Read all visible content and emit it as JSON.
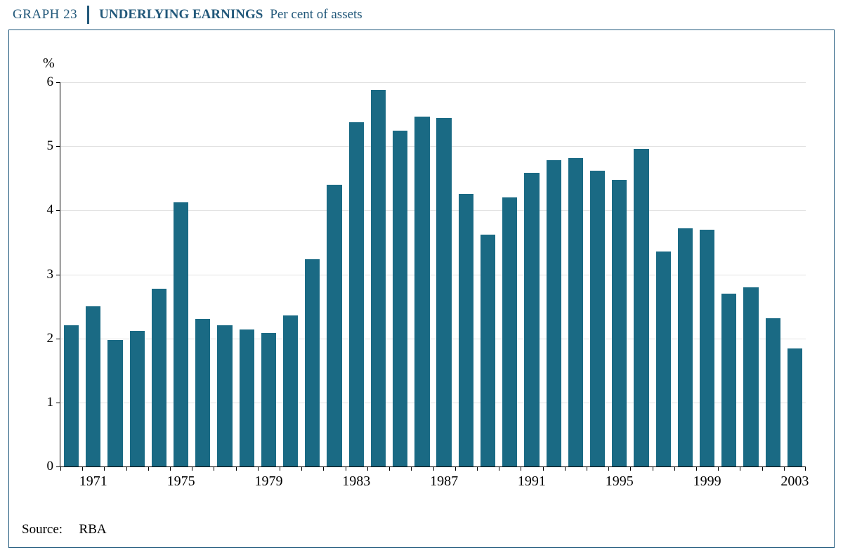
{
  "header": {
    "graph_number": "GRAPH 23",
    "title_main": "UNDERLYING EARNINGS",
    "title_sub": "Per cent of assets"
  },
  "chart": {
    "type": "bar",
    "y_unit": "%",
    "ylim": [
      0,
      6
    ],
    "yticks": [
      0,
      1,
      2,
      3,
      4,
      5,
      6
    ],
    "years": [
      1970,
      1971,
      1972,
      1973,
      1974,
      1975,
      1976,
      1977,
      1978,
      1979,
      1980,
      1981,
      1982,
      1983,
      1984,
      1985,
      1986,
      1987,
      1988,
      1989,
      1990,
      1991,
      1992,
      1993,
      1994,
      1995,
      1996,
      1997,
      1998,
      1999,
      2000,
      2001,
      2002,
      2003
    ],
    "values": [
      2.2,
      2.5,
      1.98,
      2.12,
      2.78,
      4.12,
      2.3,
      2.2,
      2.14,
      2.08,
      2.36,
      3.24,
      4.4,
      5.38,
      5.88,
      5.24,
      5.46,
      5.44,
      4.26,
      3.62,
      4.2,
      4.58,
      4.78,
      4.82,
      4.62,
      4.48,
      4.96,
      3.36,
      3.72,
      3.7,
      2.7,
      2.8,
      2.32,
      1.84
    ],
    "x_tick_labels": [
      1971,
      1975,
      1979,
      1983,
      1987,
      1991,
      1995,
      1999,
      2003
    ],
    "bar_color": "#1a6a84",
    "grid_color": "#e2e2e2",
    "axis_color": "#000000",
    "background_color": "#ffffff",
    "bar_width_ratio": 0.68,
    "title_color": "#22587a",
    "label_fontsize_pt": 15,
    "title_fontsize_pt": 14
  },
  "source": {
    "label": "Source:",
    "text": "RBA"
  }
}
